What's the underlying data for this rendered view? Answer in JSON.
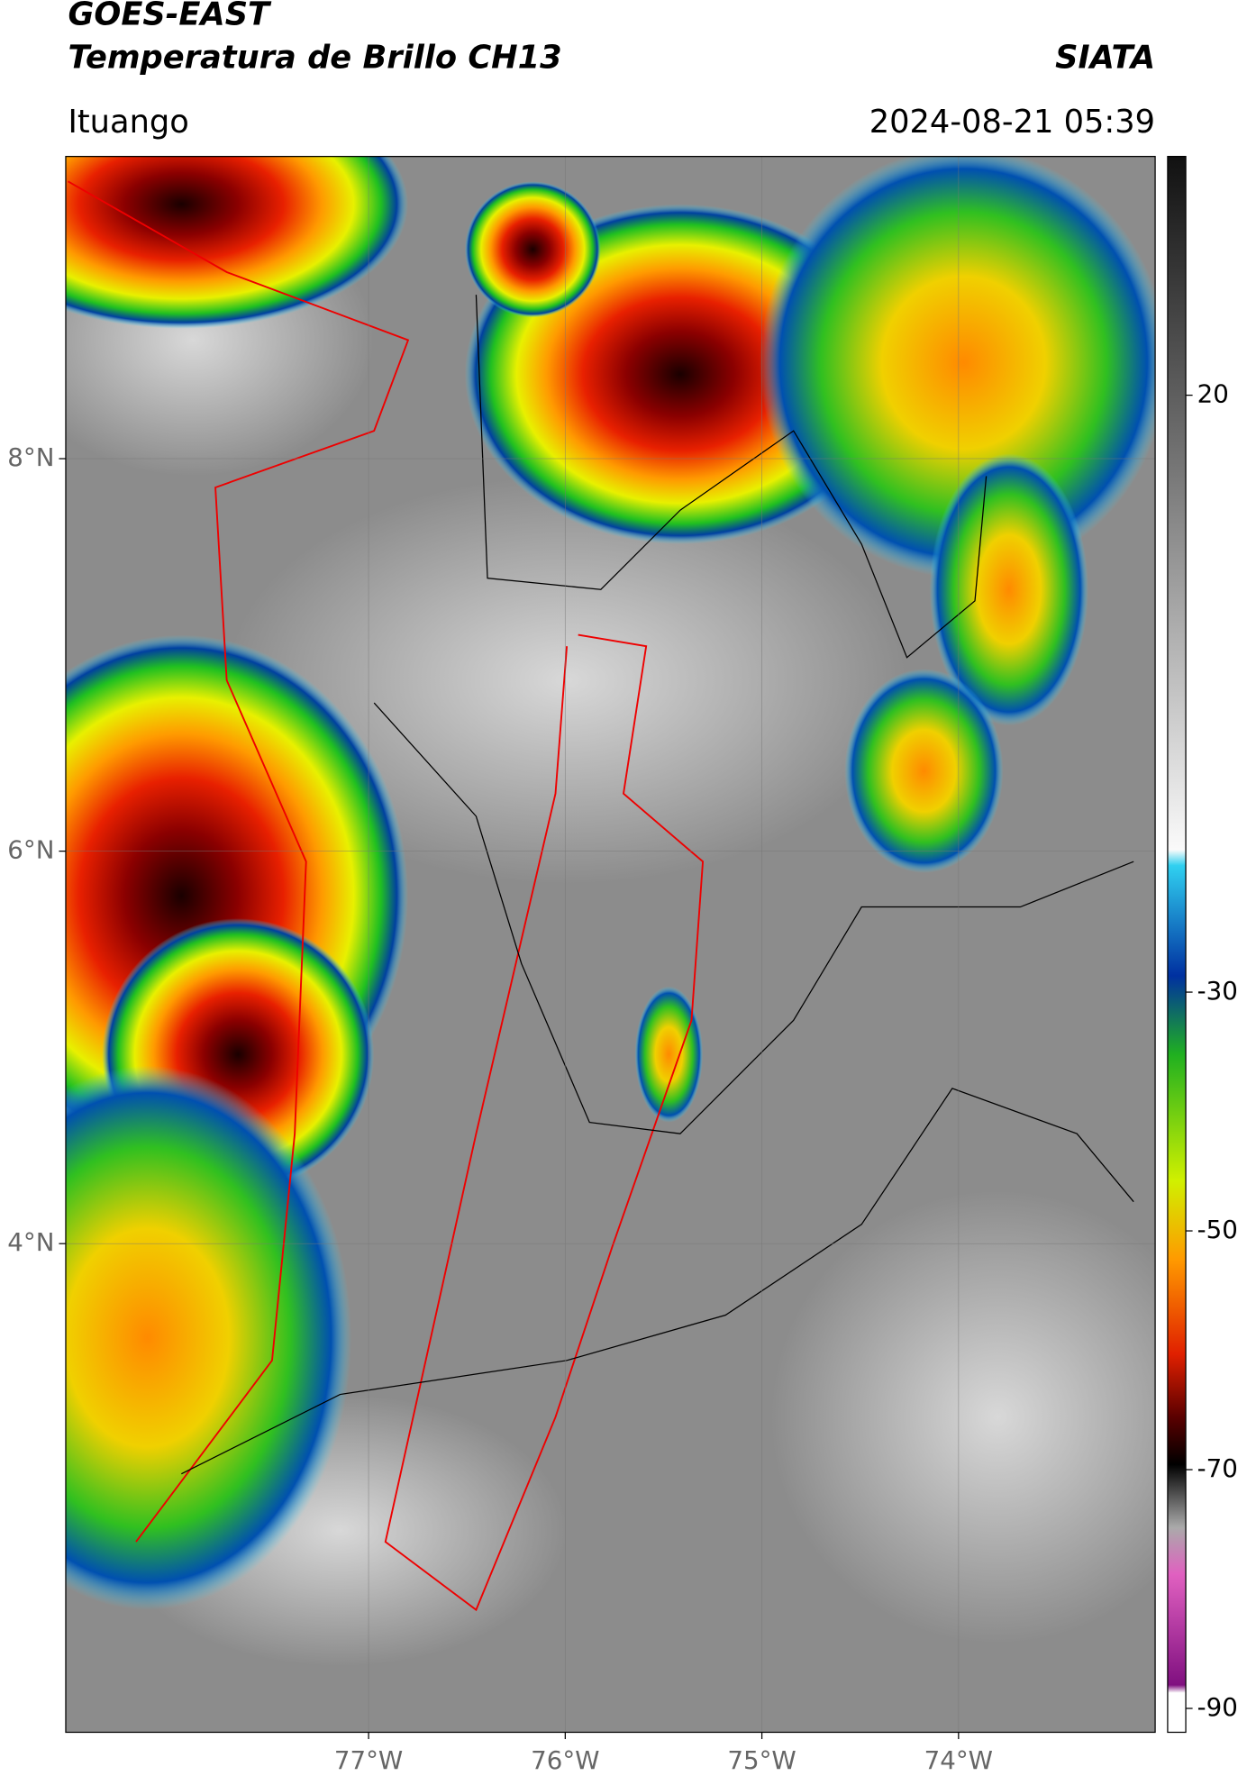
{
  "header": {
    "title_line1": "GOES-EAST",
    "title_line2": "Temperatura de Brillo CH13",
    "org": "SIATA",
    "location": "Ituango",
    "datetime": "2024-08-21 05:39"
  },
  "map": {
    "xlim": [
      -78.54,
      -73.0
    ],
    "ylim": [
      1.51,
      9.54
    ],
    "xticks": [
      {
        "value": -77,
        "label": "77°W"
      },
      {
        "value": -76,
        "label": "76°W"
      },
      {
        "value": -75,
        "label": "75°W"
      },
      {
        "value": -74,
        "label": "74°W"
      }
    ],
    "yticks": [
      {
        "value": 8,
        "label": "8°N"
      },
      {
        "value": 6,
        "label": "6°N"
      },
      {
        "value": 4,
        "label": "4°N"
      }
    ]
  },
  "colorbar": {
    "lim": [
      -92,
      40
    ],
    "ticks": [
      20,
      -30,
      -50,
      -70,
      -90
    ]
  }
}
